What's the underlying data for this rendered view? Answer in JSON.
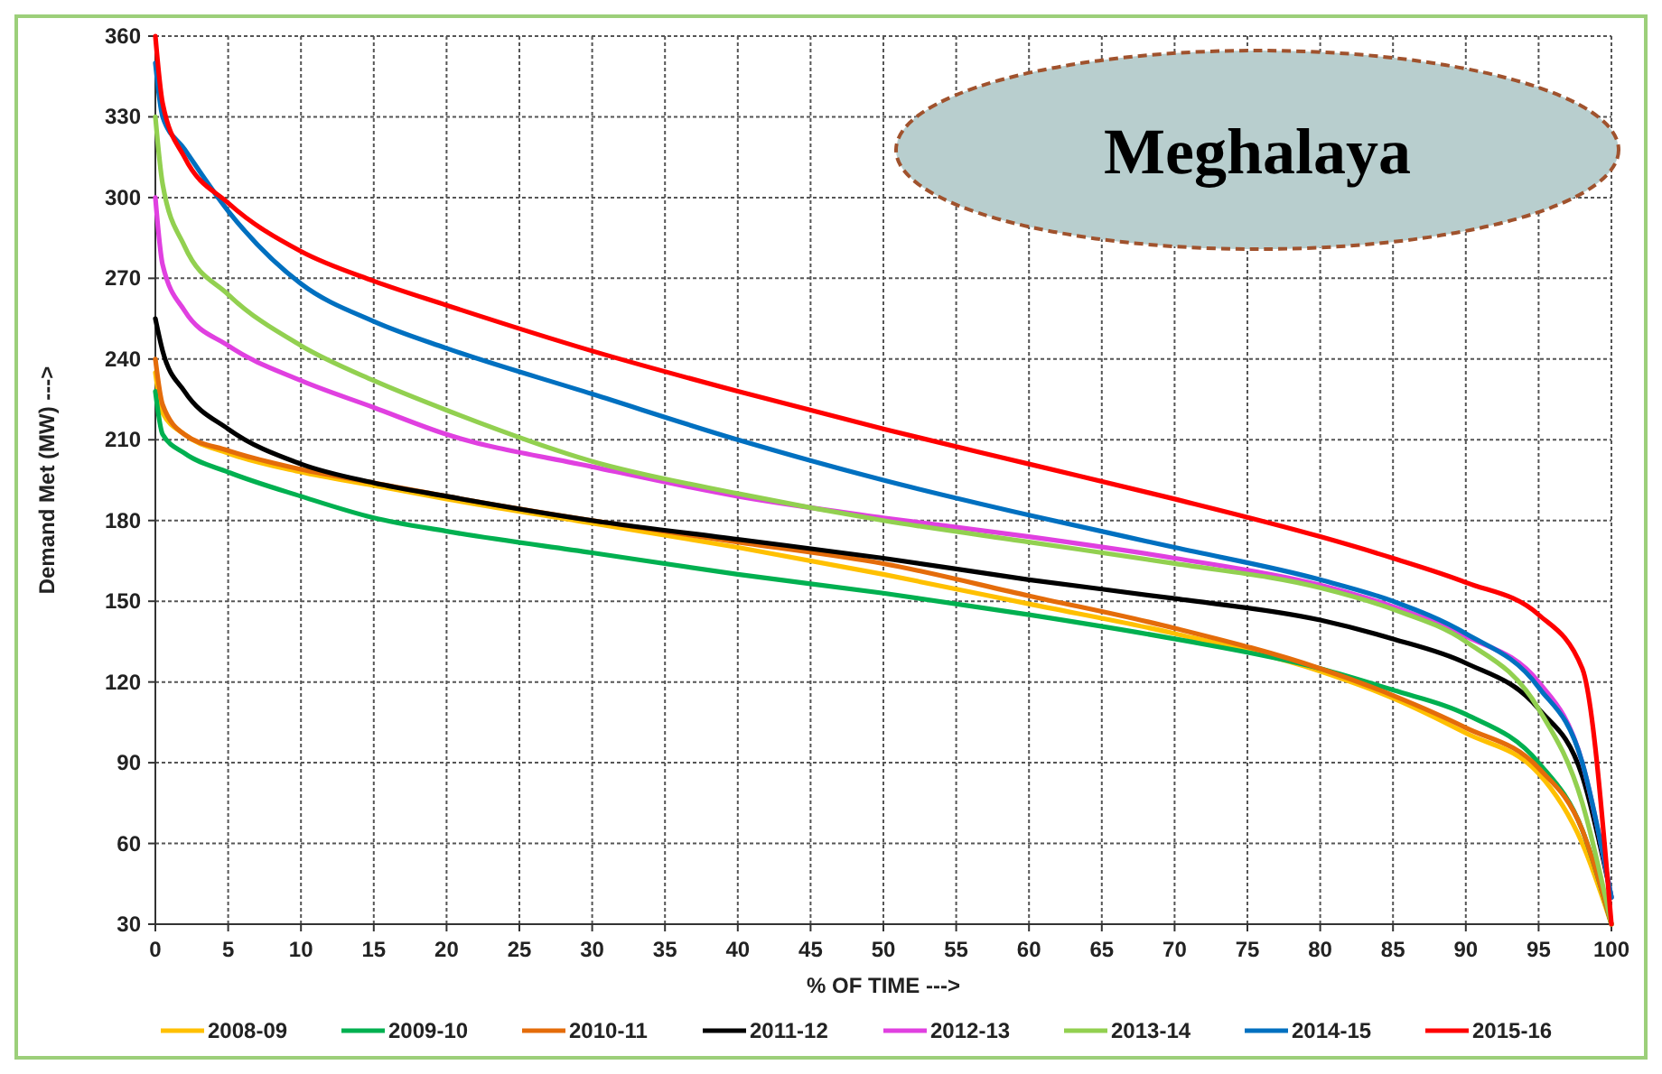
{
  "chart_data": {
    "type": "line",
    "xlabel": "% OF TIME --->",
    "ylabel": "Demand Met (MW) --->",
    "annotations": [
      "Meghalaya"
    ],
    "x": [
      0,
      0.5,
      2,
      5,
      10,
      15,
      20,
      30,
      40,
      50,
      60,
      70,
      80,
      85,
      90,
      95,
      98,
      100
    ],
    "xlim": [
      0,
      100
    ],
    "xticks": [
      0,
      5,
      10,
      15,
      20,
      25,
      30,
      35,
      40,
      45,
      50,
      55,
      60,
      65,
      70,
      75,
      80,
      85,
      90,
      95,
      100
    ],
    "ylim": [
      30,
      360
    ],
    "yticks": [
      30,
      60,
      90,
      120,
      150,
      180,
      210,
      240,
      270,
      300,
      330,
      360
    ],
    "grid": true,
    "legend": "bottom",
    "marker": "none",
    "line_style": "solid",
    "series": [
      {
        "name": "2008-09",
        "color": "#ffc000",
        "values": [
          235,
          220,
          212,
          205,
          198,
          193,
          188,
          179,
          170,
          160,
          149,
          138,
          124,
          114,
          101,
          86,
          60,
          30
        ]
      },
      {
        "name": "2009-10",
        "color": "#00b050",
        "values": [
          228,
          212,
          205,
          198,
          189,
          181,
          176,
          168,
          160,
          153,
          145,
          136,
          125,
          117,
          108,
          90,
          65,
          30
        ]
      },
      {
        "name": "2010-11",
        "color": "#e46c0a",
        "values": [
          240,
          223,
          212,
          206,
          199,
          194,
          189,
          180,
          172,
          164,
          152,
          140,
          125,
          115,
          103,
          88,
          65,
          30
        ]
      },
      {
        "name": "2011-12",
        "color": "#000000",
        "values": [
          255,
          243,
          228,
          214,
          201,
          194,
          189,
          180,
          173,
          166,
          158,
          151,
          143,
          136,
          127,
          110,
          85,
          40
        ]
      },
      {
        "name": "2012-13",
        "color": "#e040e0",
        "values": [
          300,
          275,
          258,
          245,
          232,
          222,
          212,
          200,
          189,
          181,
          174,
          166,
          156,
          148,
          137,
          120,
          90,
          40
        ]
      },
      {
        "name": "2013-14",
        "color": "#92d050",
        "values": [
          330,
          305,
          282,
          264,
          245,
          232,
          221,
          202,
          190,
          180,
          172,
          164,
          155,
          147,
          135,
          110,
          75,
          30
        ]
      },
      {
        "name": "2014-15",
        "color": "#0070c0",
        "values": [
          350,
          330,
          318,
          295,
          268,
          254,
          244,
          227,
          210,
          195,
          182,
          170,
          158,
          150,
          138,
          118,
          90,
          40
        ]
      },
      {
        "name": "2015-16",
        "color": "#ff0000",
        "values": [
          360,
          335,
          315,
          298,
          280,
          269,
          260,
          243,
          228,
          214,
          201,
          188,
          174,
          166,
          157,
          145,
          125,
          30
        ]
      }
    ]
  }
}
